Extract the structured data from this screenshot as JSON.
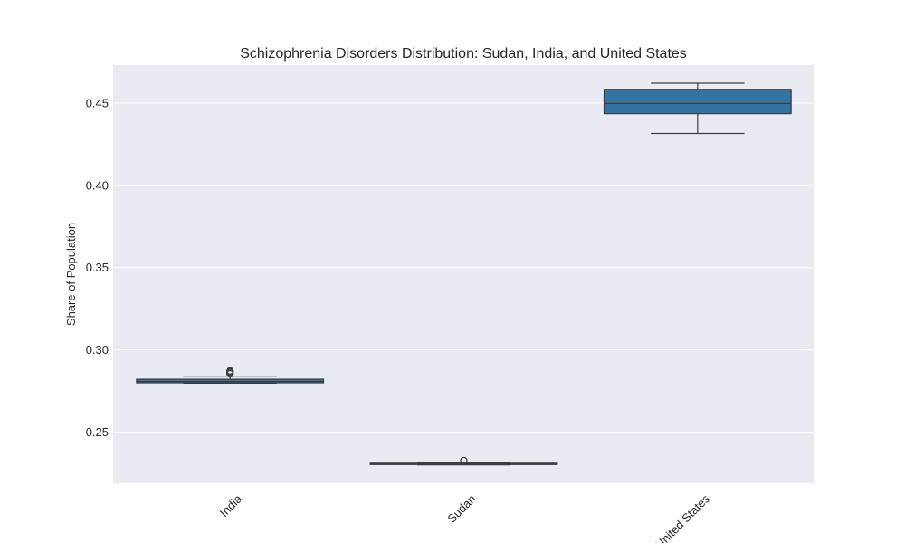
{
  "chart_data": {
    "type": "box",
    "title": "Schizophrenia Disorders Distribution: Sudan, India, and United States",
    "xlabel": "",
    "ylabel": "Share of Population",
    "ylim": [
      0.219,
      0.473
    ],
    "yticks": [
      "0.25",
      "0.30",
      "0.35",
      "0.40",
      "0.45"
    ],
    "grid": true,
    "legend": "none",
    "categories": [
      "India",
      "Sudan",
      "United States"
    ],
    "boxes": [
      {
        "category": "India",
        "whisker_low": 0.2798,
        "q1": 0.28,
        "median": 0.2808,
        "q3": 0.2822,
        "whisker_high": 0.2841,
        "outliers": [
          0.2855,
          0.2862,
          0.2868,
          0.2873
        ]
      },
      {
        "category": "Sudan",
        "whisker_low": 0.2302,
        "q1": 0.2304,
        "median": 0.2308,
        "q3": 0.2312,
        "whisker_high": 0.2316,
        "outliers": [
          0.2328
        ]
      },
      {
        "category": "United States",
        "whisker_low": 0.4315,
        "q1": 0.4435,
        "median": 0.4497,
        "q3": 0.4583,
        "whisker_high": 0.462,
        "outliers": []
      }
    ],
    "colors": {
      "box_fill": "#3274a1",
      "box_edge": "#3d3d3d",
      "plot_bg": "#eaeaf2",
      "grid": "#ffffff",
      "text": "#262626"
    }
  }
}
